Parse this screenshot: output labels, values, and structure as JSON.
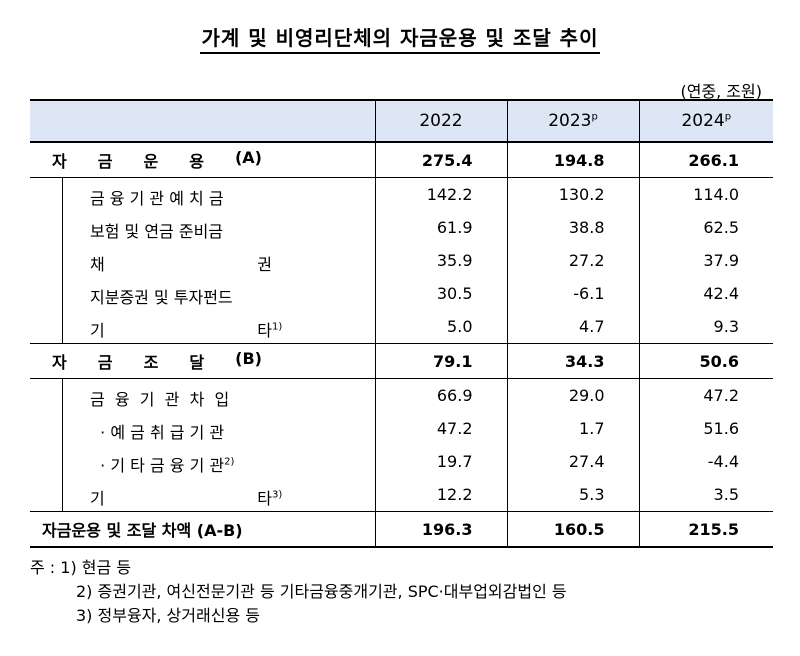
{
  "title": "가계 및 비영리단체의 자금운용 및 조달 추이",
  "unit": "(연중, 조원)",
  "headers": [
    {
      "year": "2022",
      "sup": ""
    },
    {
      "year": "2023",
      "sup": "p"
    },
    {
      "year": "2024",
      "sup": "p"
    }
  ],
  "rows": {
    "use": {
      "chars": [
        "자",
        "금",
        "운",
        "용"
      ],
      "suffix": "(A)",
      "values": [
        "275.4",
        "194.8",
        "266.1"
      ]
    },
    "use_items": [
      {
        "label": "금 융 기 관  예 치 금",
        "sup": "",
        "values": [
          "142.2",
          "130.2",
          "114.0"
        ]
      },
      {
        "label": "보험 및 연금 준비금",
        "sup": "",
        "values": [
          "61.9",
          "38.8",
          "62.5"
        ]
      },
      {
        "label": "채                              권",
        "sup": "",
        "values": [
          "35.9",
          "27.2",
          "37.9"
        ]
      },
      {
        "label": "지분증권 및 투자펀드",
        "sup": "",
        "values": [
          "30.5",
          "-6.1",
          "42.4"
        ]
      },
      {
        "label": "기                              타",
        "sup": "1)",
        "values": [
          "5.0",
          "4.7",
          "9.3"
        ]
      }
    ],
    "fund": {
      "chars": [
        "자",
        "금",
        "조",
        "달"
      ],
      "suffix": "(B)",
      "values": [
        "79.1",
        "34.3",
        "50.6"
      ]
    },
    "fund_items": [
      {
        "label": "금  융  기  관  차  입",
        "sup": "",
        "values": [
          "66.9",
          "29.0",
          "47.2"
        ]
      },
      {
        "label": "  · 예 금 취 급 기 관",
        "sup": "",
        "values": [
          "47.2",
          "1.7",
          "51.6"
        ]
      },
      {
        "label": "  · 기 타 금 융 기 관",
        "sup": "2)",
        "values": [
          "19.7",
          "27.4",
          "-4.4"
        ]
      },
      {
        "label": "기                              타",
        "sup": "3)",
        "values": [
          "12.2",
          "5.3",
          "3.5"
        ]
      }
    ],
    "diff": {
      "label": "자금운용 및 조달 차액 (A-B)",
      "values": [
        "196.3",
        "160.5",
        "215.5"
      ]
    }
  },
  "notes": [
    "주 : 1) 현금 등",
    "2) 증권기관, 여신전문기관 등 기타금융중개기관, SPC·대부업외감법인 등",
    "3) 정부융자, 상거래신용 등"
  ]
}
